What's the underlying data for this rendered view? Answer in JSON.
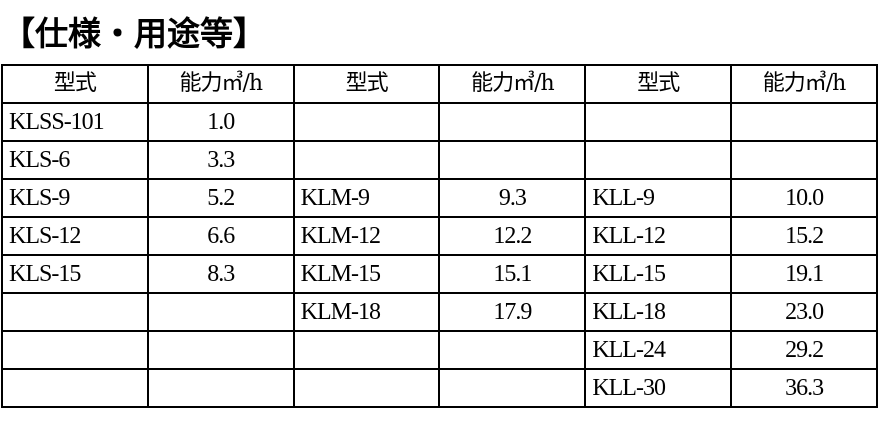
{
  "title": "【仕様・用途等】",
  "table": {
    "headers": [
      "型式",
      "能力㎥/h",
      "型式",
      "能力㎥/h",
      "型式",
      "能力㎥/h"
    ],
    "rows": [
      [
        "KLSS-101",
        "1.0",
        "",
        "",
        "",
        ""
      ],
      [
        "KLS-6",
        "3.3",
        "",
        "",
        "",
        ""
      ],
      [
        "KLS-9",
        "5.2",
        "KLM-9",
        "9.3",
        "KLL-9",
        "10.0"
      ],
      [
        "KLS-12",
        "6.6",
        "KLM-12",
        "12.2",
        "KLL-12",
        "15.2"
      ],
      [
        "KLS-15",
        "8.3",
        "KLM-15",
        "15.1",
        "KLL-15",
        "19.1"
      ],
      [
        "",
        "",
        "KLM-18",
        "17.9",
        "KLL-18",
        "23.0"
      ],
      [
        "",
        "",
        "",
        "",
        "KLL-24",
        "29.2"
      ],
      [
        "",
        "",
        "",
        "",
        "KLL-30",
        "36.3"
      ]
    ]
  }
}
